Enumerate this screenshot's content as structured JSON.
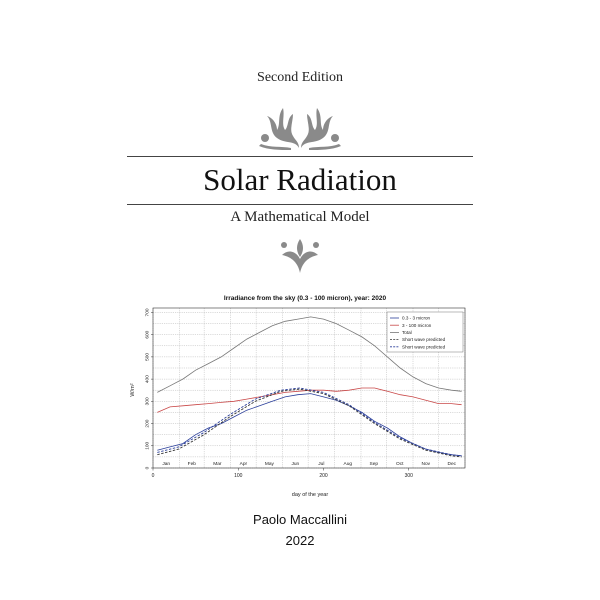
{
  "cover": {
    "edition": "Second Edition",
    "title": "Solar Radiation",
    "subtitle": "A Mathematical Model",
    "author": "Paolo Maccallini",
    "year": "2022",
    "ornament_top": "fleur-scroll-ornament",
    "ornament_bottom": "fleur-ornament",
    "ornament_color": "#8a8a8a"
  },
  "chart_data": {
    "type": "line",
    "title": "Irradiance from the sky (0.3 - 100 micron), year: 2020",
    "xlabel": "day of the year",
    "ylabel": "W/m²",
    "xlim": [
      0,
      366
    ],
    "ylim": [
      0,
      720
    ],
    "x_ticks": [
      0,
      100,
      200,
      300
    ],
    "y_ticks": [
      0,
      100,
      200,
      300,
      400,
      500,
      600,
      700
    ],
    "months": [
      "Jan",
      "Feb",
      "Mar",
      "Apr",
      "May",
      "Jun",
      "Jul",
      "Aug",
      "Sep",
      "Oct",
      "Nov",
      "Dec"
    ],
    "grid": true,
    "legend_position": "top-right",
    "series": [
      {
        "name": "0.3 - 3 micron",
        "color": "#2b3f9a",
        "style": "solid",
        "x": [
          5,
          20,
          35,
          50,
          65,
          80,
          95,
          110,
          125,
          140,
          155,
          170,
          185,
          200,
          215,
          230,
          245,
          260,
          275,
          290,
          305,
          320,
          335,
          350,
          362
        ],
        "y": [
          80,
          95,
          110,
          150,
          180,
          200,
          230,
          260,
          280,
          300,
          320,
          330,
          335,
          320,
          305,
          280,
          250,
          210,
          180,
          140,
          110,
          85,
          70,
          60,
          55
        ]
      },
      {
        "name": "3 - 100 micron",
        "color": "#c94848",
        "style": "solid",
        "x": [
          5,
          20,
          35,
          50,
          65,
          80,
          95,
          110,
          125,
          140,
          155,
          170,
          185,
          200,
          215,
          230,
          245,
          260,
          275,
          290,
          305,
          320,
          335,
          350,
          362
        ],
        "y": [
          250,
          275,
          280,
          285,
          290,
          295,
          300,
          310,
          320,
          330,
          340,
          345,
          350,
          350,
          345,
          350,
          360,
          360,
          345,
          330,
          320,
          305,
          290,
          290,
          285
        ]
      },
      {
        "name": "Total",
        "color": "#777777",
        "style": "solid",
        "x": [
          5,
          20,
          35,
          50,
          65,
          80,
          95,
          110,
          125,
          140,
          155,
          170,
          185,
          200,
          215,
          230,
          245,
          260,
          275,
          290,
          305,
          320,
          335,
          350,
          362
        ],
        "y": [
          340,
          370,
          400,
          440,
          470,
          500,
          540,
          580,
          610,
          640,
          660,
          670,
          680,
          670,
          650,
          620,
          590,
          550,
          500,
          450,
          410,
          380,
          360,
          350,
          345
        ]
      },
      {
        "name": "Short wave predicted",
        "color": "#333333",
        "style": "dashed",
        "x": [
          5,
          30,
          60,
          90,
          120,
          150,
          172,
          200,
          230,
          260,
          290,
          320,
          350,
          362
        ],
        "y": [
          60,
          85,
          150,
          230,
          300,
          345,
          355,
          335,
          280,
          200,
          130,
          80,
          55,
          50
        ]
      },
      {
        "name": "Short wave predicted",
        "color": "#2b3f9a",
        "style": "dashed",
        "x": [
          5,
          30,
          60,
          90,
          120,
          150,
          172,
          200,
          230,
          260,
          290,
          320,
          350,
          362
        ],
        "y": [
          70,
          95,
          160,
          240,
          310,
          350,
          360,
          340,
          285,
          205,
          135,
          85,
          60,
          55
        ]
      }
    ]
  }
}
